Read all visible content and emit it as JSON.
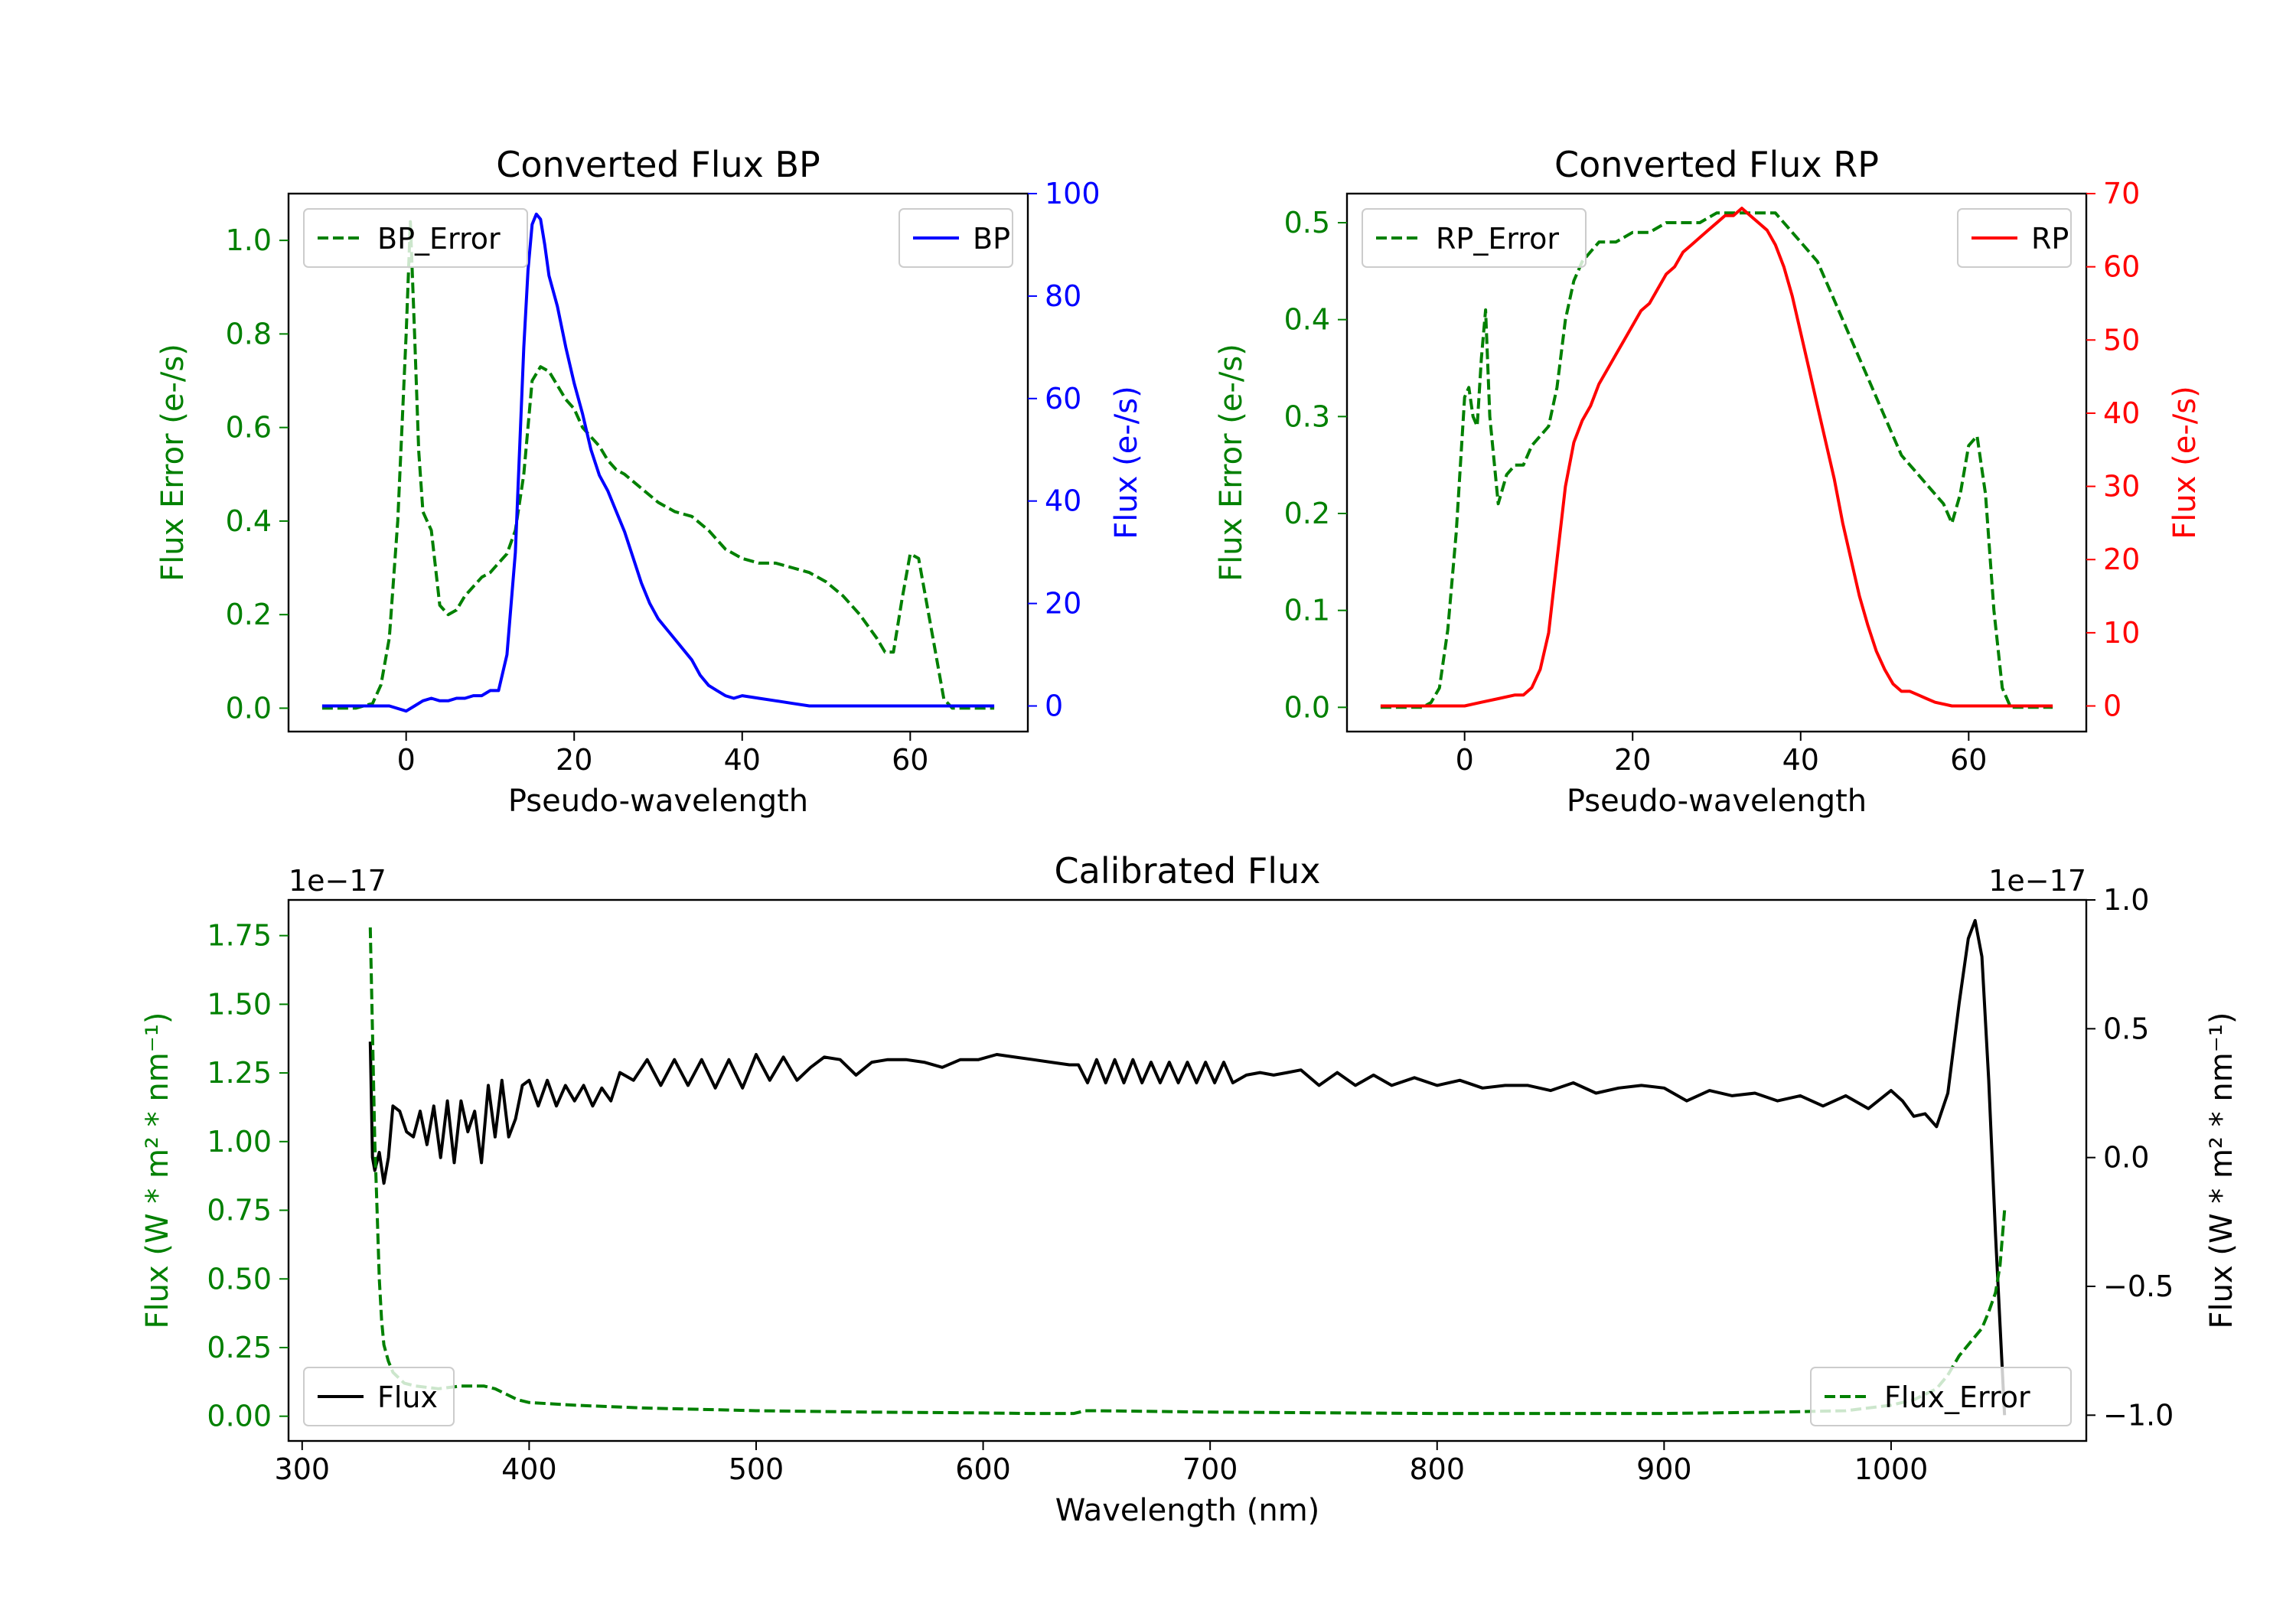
{
  "colors": {
    "green": "#008000",
    "blue": "#0000ff",
    "red": "#ff0000",
    "black": "#000000"
  },
  "chart_data": [
    {
      "id": "bp",
      "type": "line",
      "title": "Converted Flux BP",
      "xlabel": "Pseudo-wavelength",
      "ylabel_left": "Flux Error (e-/s)",
      "ylabel_right": "Flux (e-/s)",
      "xlim": [
        -14,
        74
      ],
      "ylim_left": [
        -0.05,
        1.1
      ],
      "ylim_right": [
        -5,
        100
      ],
      "xticks": [
        0,
        20,
        40,
        60
      ],
      "xtick_labels": [
        "0",
        "20",
        "40",
        "60"
      ],
      "yticks_left": [
        0.0,
        0.2,
        0.4,
        0.6,
        0.8,
        1.0
      ],
      "ytick_labels_left": [
        "0.0",
        "0.2",
        "0.4",
        "0.6",
        "0.8",
        "1.0"
      ],
      "yticks_right": [
        0,
        20,
        40,
        60,
        80,
        100
      ],
      "ytick_labels_right": [
        "0",
        "20",
        "40",
        "60",
        "80",
        "100"
      ],
      "series": [
        {
          "name": "BP_Error",
          "axis": "left",
          "color": "#008000",
          "style": "dashed",
          "x": [
            -10,
            -6,
            -4,
            -3,
            -2,
            -1,
            0,
            0.5,
            1,
            1.5,
            2,
            3,
            4,
            5,
            6,
            7,
            8,
            9,
            10,
            11,
            12,
            13,
            14,
            15,
            16,
            17,
            18,
            19,
            20,
            21,
            22,
            23,
            24,
            25,
            26,
            28,
            30,
            32,
            34,
            36,
            38,
            40,
            42,
            44,
            46,
            48,
            50,
            52,
            54,
            56,
            57,
            58,
            59,
            60,
            61,
            62,
            63,
            64,
            65,
            66,
            68,
            70
          ],
          "y": [
            0.0,
            0.0,
            0.01,
            0.05,
            0.15,
            0.4,
            0.8,
            1.04,
            0.8,
            0.55,
            0.42,
            0.38,
            0.22,
            0.2,
            0.21,
            0.24,
            0.26,
            0.28,
            0.29,
            0.31,
            0.33,
            0.38,
            0.5,
            0.7,
            0.73,
            0.72,
            0.69,
            0.66,
            0.64,
            0.6,
            0.58,
            0.56,
            0.53,
            0.51,
            0.5,
            0.47,
            0.44,
            0.42,
            0.41,
            0.38,
            0.34,
            0.32,
            0.31,
            0.31,
            0.3,
            0.29,
            0.27,
            0.24,
            0.2,
            0.15,
            0.12,
            0.12,
            0.23,
            0.33,
            0.32,
            0.22,
            0.12,
            0.02,
            0.0,
            0.0,
            0.0,
            0.0
          ]
        },
        {
          "name": "BP",
          "axis": "right",
          "color": "#0000ff",
          "style": "solid",
          "x": [
            -10,
            -4,
            -2,
            0,
            1,
            2,
            3,
            4,
            5,
            6,
            7,
            8,
            9,
            10,
            11,
            12,
            13,
            14,
            14.5,
            15,
            15.5,
            16,
            16.5,
            17,
            18,
            19,
            20,
            21,
            22,
            23,
            24,
            25,
            26,
            27,
            28,
            29,
            30,
            31,
            32,
            33,
            34,
            35,
            36,
            37,
            38,
            39,
            40,
            42,
            44,
            46,
            48,
            50,
            55,
            60,
            65,
            70
          ],
          "y": [
            0,
            0,
            0,
            -1,
            0,
            1,
            1.5,
            1,
            1,
            1.5,
            1.5,
            2,
            2,
            3,
            3,
            10,
            30,
            70,
            85,
            94,
            96,
            95,
            90,
            84,
            78,
            70,
            63,
            57,
            50,
            45,
            42,
            38,
            34,
            29,
            24,
            20,
            17,
            15,
            13,
            11,
            9,
            6,
            4,
            3,
            2,
            1.5,
            2,
            1.5,
            1,
            0.5,
            0,
            0,
            0,
            0,
            0,
            0
          ]
        }
      ],
      "legend": [
        {
          "label": "BP_Error",
          "position": "upper-left"
        },
        {
          "label": "BP",
          "position": "upper-right"
        }
      ]
    },
    {
      "id": "rp",
      "type": "line",
      "title": "Converted Flux RP",
      "xlabel": "Pseudo-wavelength",
      "ylabel_left": "Flux Error (e-/s)",
      "ylabel_right": "Flux (e-/s)",
      "xlim": [
        -14,
        74
      ],
      "ylim_left": [
        -0.025,
        0.53
      ],
      "ylim_right": [
        -3.5,
        70
      ],
      "xticks": [
        0,
        20,
        40,
        60
      ],
      "xtick_labels": [
        "0",
        "20",
        "40",
        "60"
      ],
      "yticks_left": [
        0.0,
        0.1,
        0.2,
        0.3,
        0.4,
        0.5
      ],
      "ytick_labels_left": [
        "0.0",
        "0.1",
        "0.2",
        "0.3",
        "0.4",
        "0.5"
      ],
      "yticks_right": [
        0,
        10,
        20,
        30,
        40,
        50,
        60,
        70
      ],
      "ytick_labels_right": [
        "0",
        "10",
        "20",
        "30",
        "40",
        "50",
        "60",
        "70"
      ],
      "series": [
        {
          "name": "RP_Error",
          "axis": "left",
          "color": "#008000",
          "style": "dashed",
          "x": [
            -10,
            -5,
            -4,
            -3,
            -2,
            -1,
            0,
            0.5,
            1,
            1.5,
            2,
            2.5,
            3,
            4,
            5,
            6,
            7,
            8,
            9,
            10,
            11,
            12,
            13,
            14,
            15,
            16,
            18,
            20,
            22,
            24,
            26,
            28,
            30,
            32,
            34,
            36,
            37,
            38,
            40,
            42,
            44,
            46,
            48,
            50,
            52,
            54,
            55,
            56,
            57,
            58,
            59,
            60,
            61,
            62,
            63,
            64,
            65,
            70
          ],
          "y": [
            0.0,
            0.0,
            0.005,
            0.02,
            0.08,
            0.18,
            0.32,
            0.33,
            0.3,
            0.29,
            0.36,
            0.41,
            0.3,
            0.21,
            0.24,
            0.25,
            0.25,
            0.27,
            0.28,
            0.29,
            0.33,
            0.4,
            0.44,
            0.46,
            0.47,
            0.48,
            0.48,
            0.49,
            0.49,
            0.5,
            0.5,
            0.5,
            0.51,
            0.51,
            0.51,
            0.51,
            0.51,
            0.5,
            0.48,
            0.46,
            0.42,
            0.38,
            0.34,
            0.3,
            0.26,
            0.24,
            0.23,
            0.22,
            0.21,
            0.19,
            0.22,
            0.27,
            0.28,
            0.22,
            0.1,
            0.02,
            0.0,
            0.0
          ]
        },
        {
          "name": "RP",
          "axis": "right",
          "color": "#ff0000",
          "style": "solid",
          "x": [
            -10,
            -4,
            -2,
            0,
            2,
            4,
            6,
            7,
            8,
            9,
            10,
            11,
            12,
            13,
            14,
            15,
            16,
            17,
            18,
            19,
            20,
            21,
            22,
            23,
            24,
            25,
            26,
            27,
            28,
            29,
            30,
            31,
            32,
            33,
            34,
            35,
            36,
            37,
            38,
            39,
            40,
            41,
            42,
            43,
            44,
            45,
            46,
            47,
            48,
            49,
            50,
            51,
            52,
            53,
            54,
            55,
            56,
            58,
            60,
            65,
            70
          ],
          "y": [
            0,
            0,
            0,
            0,
            0.5,
            1,
            1.5,
            1.5,
            2.5,
            5,
            10,
            20,
            30,
            36,
            39,
            41,
            44,
            46,
            48,
            50,
            52,
            54,
            55,
            57,
            59,
            60,
            62,
            63,
            64,
            65,
            66,
            67,
            67,
            68,
            67,
            66,
            65,
            63,
            60,
            56,
            51,
            46,
            41,
            36,
            31,
            25,
            20,
            15,
            11,
            7.5,
            5,
            3,
            2,
            2,
            1.5,
            1,
            0.5,
            0,
            0,
            0,
            0
          ]
        }
      ],
      "legend": [
        {
          "label": "RP_Error",
          "position": "upper-left"
        },
        {
          "label": "RP",
          "position": "upper-right"
        }
      ]
    },
    {
      "id": "cal",
      "type": "line",
      "title": "Calibrated Flux",
      "xlabel": "Wavelength (nm)",
      "ylabel_left": "Flux (W * m² * nm⁻¹)",
      "ylabel_right": "Flux (W * m² * nm⁻¹)",
      "offset_left": "1e−17",
      "offset_right": "1e−17",
      "xlim": [
        294,
        1086
      ],
      "ylim_left": [
        -0.09,
        1.88
      ],
      "ylim_right": [
        -1.1,
        1.0
      ],
      "xticks": [
        300,
        400,
        500,
        600,
        700,
        800,
        900,
        1000
      ],
      "xtick_labels": [
        "300",
        "400",
        "500",
        "600",
        "700",
        "800",
        "900",
        "1000"
      ],
      "yticks_left": [
        0.0,
        0.25,
        0.5,
        0.75,
        1.0,
        1.25,
        1.5,
        1.75
      ],
      "ytick_labels_left": [
        "0.00",
        "0.25",
        "0.50",
        "0.75",
        "1.00",
        "1.25",
        "1.50",
        "1.75"
      ],
      "yticks_right": [
        -1.0,
        -0.5,
        0.0,
        0.5,
        1.0
      ],
      "ytick_labels_right": [
        "−1.0",
        "−0.5",
        "0.0",
        "0.5",
        "1.0"
      ],
      "series": [
        {
          "name": "Flux",
          "axis": "right",
          "color": "#000000",
          "style": "solid",
          "x": [
            330,
            331,
            332,
            334,
            336,
            338,
            340,
            343,
            346,
            349,
            352,
            355,
            358,
            361,
            364,
            367,
            370,
            373,
            376,
            379,
            382,
            385,
            388,
            391,
            394,
            397,
            400,
            404,
            408,
            412,
            416,
            420,
            424,
            428,
            432,
            436,
            440,
            446,
            452,
            458,
            464,
            470,
            476,
            482,
            488,
            494,
            500,
            506,
            512,
            518,
            524,
            530,
            537,
            544,
            551,
            558,
            566,
            574,
            582,
            590,
            598,
            606,
            614,
            622,
            630,
            638,
            642,
            646,
            650,
            654,
            658,
            662,
            666,
            670,
            674,
            678,
            682,
            686,
            690,
            694,
            698,
            702,
            706,
            710,
            716,
            722,
            728,
            734,
            740,
            748,
            756,
            764,
            772,
            780,
            790,
            800,
            810,
            820,
            830,
            840,
            850,
            860,
            870,
            880,
            890,
            900,
            910,
            920,
            930,
            940,
            950,
            960,
            970,
            980,
            990,
            1000,
            1005,
            1010,
            1015,
            1020,
            1025,
            1030,
            1034,
            1037,
            1040,
            1043,
            1046,
            1048,
            1050
          ],
          "y": [
            0.45,
            0.0,
            -0.05,
            0.02,
            -0.1,
            0.0,
            0.2,
            0.18,
            0.1,
            0.08,
            0.18,
            0.05,
            0.2,
            0.0,
            0.22,
            -0.02,
            0.22,
            0.1,
            0.18,
            -0.02,
            0.28,
            0.08,
            0.3,
            0.08,
            0.15,
            0.28,
            0.3,
            0.2,
            0.3,
            0.2,
            0.28,
            0.22,
            0.28,
            0.2,
            0.27,
            0.22,
            0.33,
            0.3,
            0.38,
            0.28,
            0.38,
            0.28,
            0.38,
            0.27,
            0.38,
            0.27,
            0.4,
            0.3,
            0.39,
            0.3,
            0.35,
            0.39,
            0.38,
            0.32,
            0.37,
            0.38,
            0.38,
            0.37,
            0.35,
            0.38,
            0.38,
            0.4,
            0.39,
            0.38,
            0.37,
            0.36,
            0.36,
            0.29,
            0.38,
            0.29,
            0.38,
            0.29,
            0.38,
            0.29,
            0.37,
            0.29,
            0.37,
            0.29,
            0.37,
            0.29,
            0.37,
            0.29,
            0.37,
            0.29,
            0.32,
            0.33,
            0.32,
            0.33,
            0.34,
            0.28,
            0.33,
            0.28,
            0.32,
            0.28,
            0.31,
            0.28,
            0.3,
            0.27,
            0.28,
            0.28,
            0.26,
            0.29,
            0.25,
            0.27,
            0.28,
            0.27,
            0.22,
            0.26,
            0.24,
            0.25,
            0.22,
            0.24,
            0.2,
            0.24,
            0.19,
            0.26,
            0.22,
            0.16,
            0.17,
            0.12,
            0.25,
            0.6,
            0.85,
            0.92,
            0.78,
            0.3,
            -0.3,
            -0.65,
            -1.0
          ]
        },
        {
          "name": "Flux_Error",
          "axis": "left",
          "color": "#008000",
          "style": "dashed",
          "x": [
            330,
            331,
            332,
            333,
            334,
            335,
            336,
            338,
            340,
            345,
            350,
            360,
            370,
            380,
            385,
            390,
            395,
            400,
            420,
            450,
            500,
            550,
            600,
            620,
            640,
            645,
            650,
            700,
            800,
            900,
            950,
            980,
            1000,
            1010,
            1020,
            1025,
            1030,
            1035,
            1040,
            1043,
            1046,
            1048,
            1050
          ],
          "y": [
            1.78,
            1.4,
            1.0,
            0.75,
            0.5,
            0.35,
            0.26,
            0.2,
            0.16,
            0.12,
            0.11,
            0.1,
            0.11,
            0.11,
            0.1,
            0.08,
            0.06,
            0.05,
            0.04,
            0.03,
            0.02,
            0.015,
            0.012,
            0.01,
            0.01,
            0.02,
            0.02,
            0.015,
            0.01,
            0.01,
            0.015,
            0.02,
            0.04,
            0.06,
            0.1,
            0.15,
            0.22,
            0.27,
            0.32,
            0.38,
            0.45,
            0.55,
            0.75
          ]
        }
      ],
      "legend": [
        {
          "label": "Flux",
          "position": "lower-left"
        },
        {
          "label": "Flux_Error",
          "position": "lower-right"
        }
      ]
    }
  ]
}
